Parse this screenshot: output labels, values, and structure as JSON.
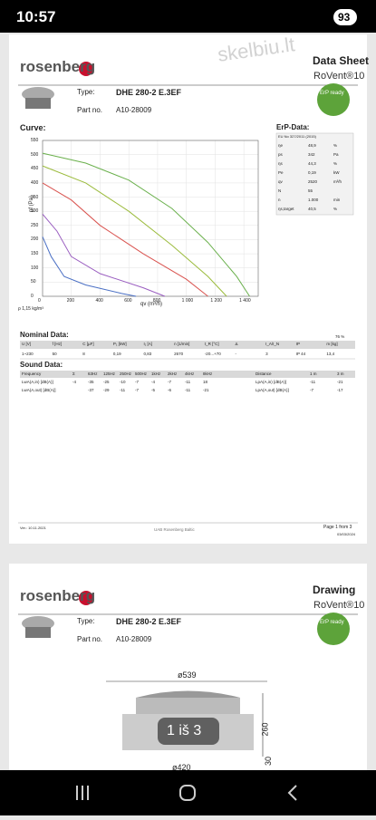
{
  "status_bar": {
    "time": "10:57",
    "battery": "93"
  },
  "watermark": "skelbiu.lt",
  "page1": {
    "logo": "rosenberg",
    "title": "Data Sheet",
    "product": "RoVent®10",
    "erp_badge": "ErP ready",
    "type_label": "Type:",
    "type": "DHE 280-2 E.3EF",
    "part_label": "Part no.",
    "part": "A10-28009",
    "curve": {
      "title": "Curve:",
      "y_label": "pf (Pa)",
      "x_label": "qv (m³/h)",
      "density": "ρ 1,15 kg/m³",
      "xlim": [
        0,
        1500
      ],
      "ylim": [
        0,
        550
      ],
      "xticks": [
        0,
        200,
        400,
        600,
        800,
        {
          "value": 1000,
          "label": "1 000"
        },
        {
          "value": 1200,
          "label": "1 200"
        },
        {
          "value": 1400,
          "label": "1 400"
        }
      ],
      "yticks": [
        0,
        50,
        100,
        150,
        200,
        250,
        300,
        350,
        400,
        450,
        500,
        550
      ],
      "series": [
        {
          "color": "#6ab04c",
          "x": [
            0,
            300,
            600,
            900,
            1150,
            1350,
            1440
          ],
          "values": [
            505,
            470,
            410,
            310,
            190,
            70,
            0
          ]
        },
        {
          "color": "#9bbb3c",
          "x": [
            0,
            300,
            600,
            900,
            1150,
            1280
          ],
          "values": [
            460,
            400,
            300,
            180,
            70,
            0
          ]
        },
        {
          "color": "#d9534f",
          "x": [
            0,
            200,
            400,
            700,
            1000,
            1150
          ],
          "values": [
            400,
            340,
            250,
            150,
            60,
            0
          ]
        },
        {
          "color": "#9a5ec0",
          "x": [
            0,
            100,
            200,
            400,
            700,
            850
          ],
          "values": [
            290,
            230,
            140,
            80,
            30,
            0
          ]
        },
        {
          "color": "#4a6fc4",
          "x": [
            0,
            60,
            150,
            300,
            550,
            650
          ],
          "values": [
            210,
            140,
            70,
            40,
            10,
            0
          ]
        }
      ]
    },
    "erp": {
      "title": "ErP-Data:",
      "header": "EU No 327/2011 (2015)",
      "rows": [
        [
          "ηe",
          "48,9",
          "%"
        ],
        [
          "ps",
          "342",
          "Pa"
        ],
        [
          "ηs",
          "44,3",
          "%"
        ],
        [
          "Pe",
          "0,19",
          "kW"
        ],
        [
          "qv",
          "2520",
          "m³/h"
        ],
        [
          "N",
          "55",
          ""
        ],
        [
          "n",
          "1.000",
          "min"
        ],
        [
          "ηs,target",
          "40,5",
          "%"
        ]
      ]
    },
    "nominal": {
      "title": "Nominal Data:",
      "efficiency": "76 %",
      "headers": [
        "U [V]",
        "f [Hz]",
        "C [µF]",
        "P₁ [kW]",
        "I₁ [A]",
        "n [1/min]",
        "t_R [°C]",
        "Δ",
        "I_A/I_N",
        "IP",
        "m [kg]"
      ],
      "values": [
        "1~230",
        "50",
        "8",
        "0,19",
        "0,83",
        "2670",
        "-20...+70",
        "-",
        "3",
        "IP 44",
        "13,4"
      ]
    },
    "sound": {
      "title": "Sound Data:",
      "headers": [
        "Frequency",
        "Σ",
        "63Hz",
        "125Hz",
        "250Hz",
        "500Hz",
        "1kHz",
        "2kHz",
        "4kHz",
        "8kHz",
        "Distance",
        "1 m",
        "3 m"
      ],
      "rows": [
        [
          "LwA(A,in) [dB(A)]",
          "-4",
          "-35",
          "-25",
          "-10",
          "-7",
          "-4",
          "-7",
          "-11",
          "18",
          "LpA(A,in) [dB(A)]",
          "-11",
          "-21"
        ],
        [
          "LwA(A,out) [dB(A)]",
          "",
          "-37",
          "-29",
          "-11",
          "-7",
          "-5",
          "-6",
          "-11",
          "-21",
          "LpA(A,out) [dB(A)]",
          "-7",
          "-17"
        ]
      ]
    },
    "footer": {
      "left": "Ver.: 10.11.2021",
      "center": "UAB Rosenberg Baltic",
      "page": "Page 1 from 3",
      "date": "03/03/2024"
    }
  },
  "page2": {
    "logo": "rosenberg",
    "title": "Drawing",
    "product": "RoVent®10",
    "erp_badge": "ErP ready",
    "type_label": "Type:",
    "type": "DHE 280-2 E.3EF",
    "part_label": "Part no.",
    "part": "A10-28009",
    "dims": [
      "ø539",
      "260",
      "30",
      "ø420"
    ],
    "page_indicator": "1 iš 3"
  }
}
